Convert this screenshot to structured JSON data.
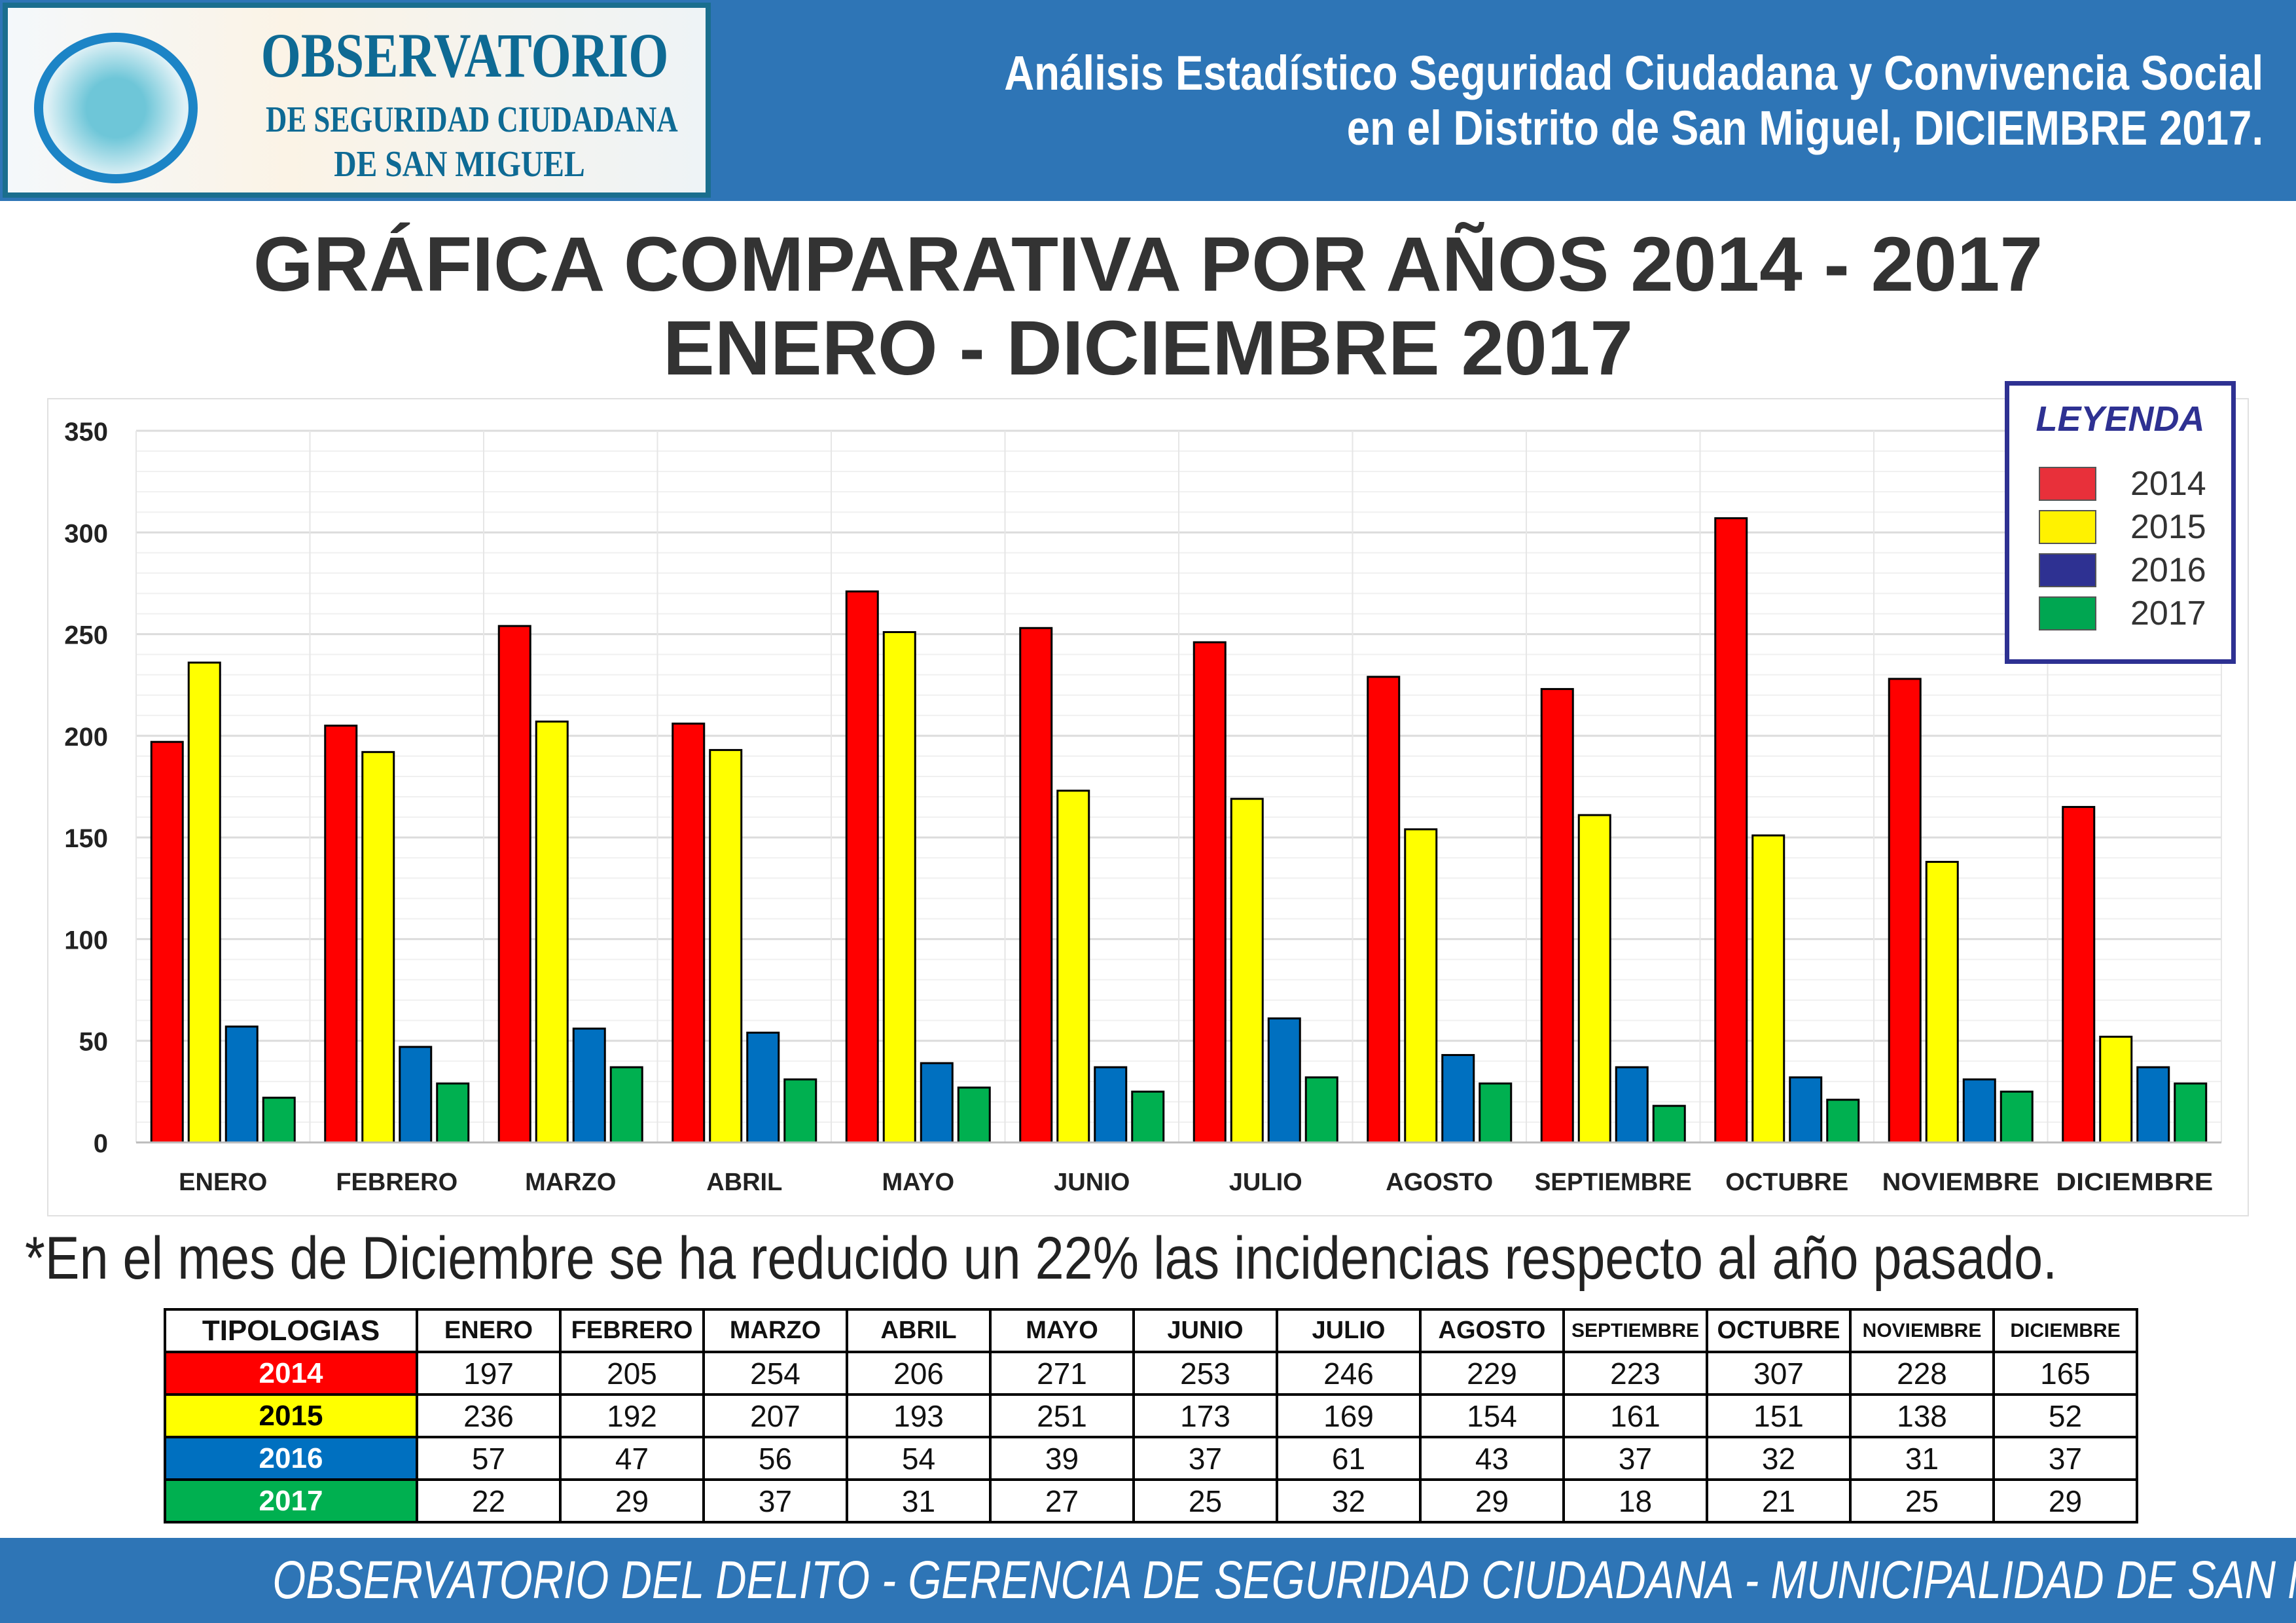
{
  "header": {
    "logo_lines": [
      "OBSERVATORIO",
      "DE SEGURIDAD CIUDADANA",
      "DE SAN MIGUEL"
    ],
    "title_line1": "Análisis Estadístico Seguridad Ciudadana y Convivencia Social",
    "title_line2": "en el Distrito de San Miguel, DICIEMBRE 2017."
  },
  "title_line1": "GRÁFICA COMPARATIVA POR AÑOS 2014 - 2017",
  "title_line2": "ENERO -  DICIEMBRE 2017",
  "note": "*En el mes de Diciembre se ha reducido un 22% las incidencias respecto al año pasado.",
  "footer": "OBSERVATORIO DEL DELITO  - GERENCIA DE SEGURIDAD CIUDADANA - MUNICIPALIDAD DE SAN MIGUEL",
  "legend": {
    "title": "LEYENDA",
    "placement": "top-right",
    "colors": [
      "#E8303A",
      "#FFF200",
      "#2E3192",
      "#00A651"
    ]
  },
  "chart_data": {
    "type": "bar",
    "categories": [
      "ENERO",
      "FEBRERO",
      "MARZO",
      "ABRIL",
      "MAYO",
      "JUNIO",
      "JULIO",
      "AGOSTO",
      "SEPTIEMBRE",
      "OCTUBRE",
      "NOVIEMBRE",
      "DICIEMBRE"
    ],
    "series": [
      {
        "name": "2014",
        "color": "#FF0000",
        "values": [
          197,
          205,
          254,
          206,
          271,
          253,
          246,
          229,
          223,
          307,
          228,
          165
        ]
      },
      {
        "name": "2015",
        "color": "#FFFF00",
        "values": [
          236,
          192,
          207,
          193,
          251,
          173,
          169,
          154,
          161,
          151,
          138,
          52
        ]
      },
      {
        "name": "2016",
        "color": "#0070C0",
        "values": [
          57,
          47,
          56,
          54,
          39,
          37,
          61,
          43,
          37,
          32,
          31,
          37
        ]
      },
      {
        "name": "2017",
        "color": "#00B050",
        "values": [
          22,
          29,
          37,
          31,
          27,
          25,
          32,
          29,
          18,
          21,
          25,
          29
        ]
      }
    ],
    "ylim": [
      0,
      350
    ],
    "yticks": [
      0,
      50,
      100,
      150,
      200,
      250,
      300,
      350
    ],
    "grid": true
  },
  "table": {
    "header": "TIPOLOGIAS",
    "text_colors": [
      "#FFFFFF",
      "#000000",
      "#FFFFFF",
      "#FFFFFF"
    ]
  }
}
